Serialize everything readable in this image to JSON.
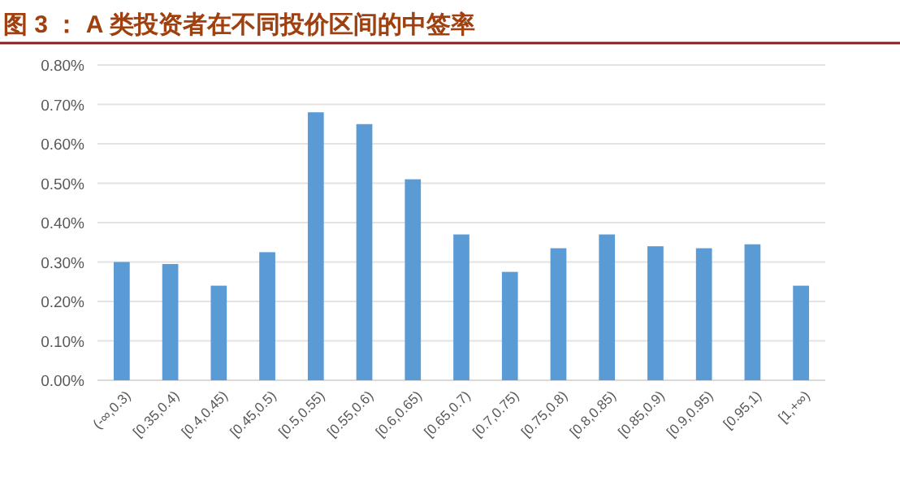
{
  "chart_data": {
    "type": "bar",
    "title": "图 3 ： A 类投资者在不同投价区间的中签率",
    "categories": [
      "(-∞,0.3)",
      "[0.35,0.4)",
      "[0.4,0.45)",
      "[0.45,0.5)",
      "[0.5,0.55)",
      "[0.55,0.6)",
      "[0.6,0.65)",
      "[0.65,0.7)",
      "[0.7,0.75)",
      "[0.75,0.8)",
      "[0.8,0.85)",
      "[0.85,0.9)",
      "[0.9,0.95)",
      "[0.95,1)",
      "[1,+∞)"
    ],
    "series": [
      {
        "color": "#5b9bd5",
        "values": [
          0.3,
          0.295,
          0.24,
          0.325,
          0.68,
          0.65,
          0.51,
          0.37,
          0.275,
          0.335,
          0.37,
          0.34,
          0.335,
          0.345,
          0.24
        ]
      }
    ],
    "ylim": [
      0,
      0.8
    ],
    "yticks": [
      {
        "value": 0,
        "label": "0.00%"
      },
      {
        "value": 0.1,
        "label": "0.10%"
      },
      {
        "value": 0.2,
        "label": "0.20%"
      },
      {
        "value": 0.3,
        "label": "0.30%"
      },
      {
        "value": 0.4,
        "label": "0.40%"
      },
      {
        "value": 0.5,
        "label": "0.50%"
      },
      {
        "value": 0.6,
        "label": "0.60%"
      },
      {
        "value": 0.7,
        "label": "0.70%"
      },
      {
        "value": 0.8,
        "label": "0.80%"
      }
    ],
    "grid": "y"
  }
}
